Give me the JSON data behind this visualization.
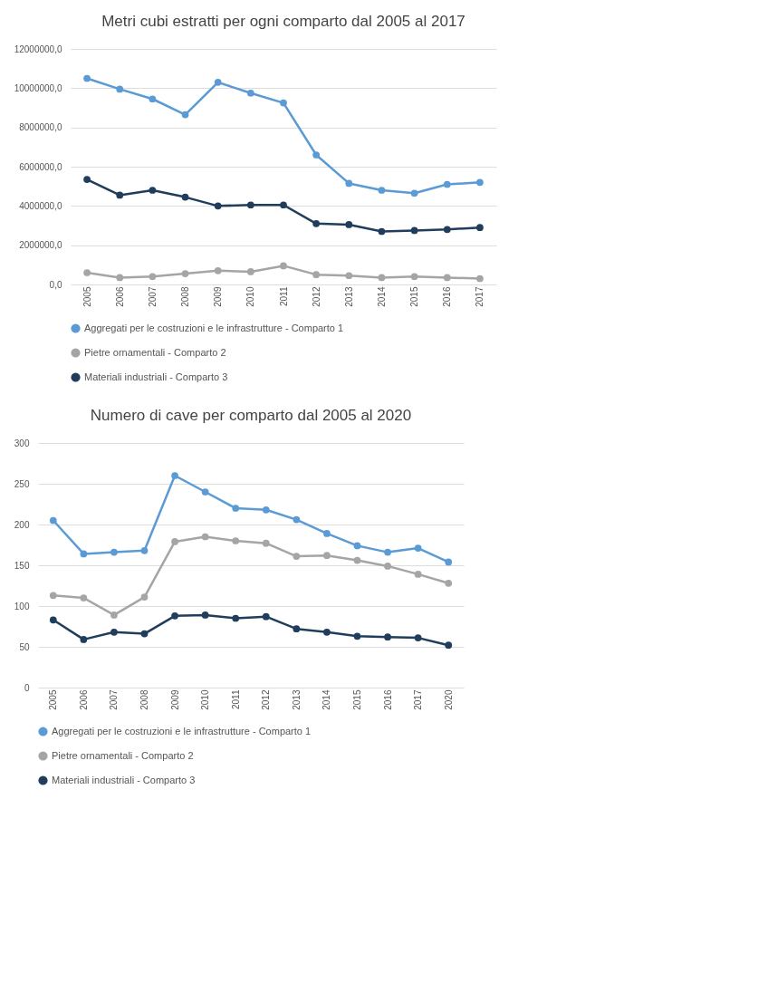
{
  "chart_data": [
    {
      "type": "line",
      "title": "Metri cubi estratti per ogni comparto dal 2005 al 2017",
      "categories": [
        "2005",
        "2006",
        "2007",
        "2008",
        "2009",
        "2010",
        "2011",
        "2012",
        "2013",
        "2014",
        "2015",
        "2016",
        "2017"
      ],
      "series": [
        {
          "name": "Aggregati per le costruzioni e le infrastrutture - Comparto 1",
          "color": "#5b9bd5",
          "values": [
            10500000,
            9950000,
            9450000,
            8650000,
            10300000,
            9750000,
            9250000,
            6600000,
            5150000,
            4800000,
            4650000,
            5100000,
            5200000
          ]
        },
        {
          "name": "Pietre ornamentali - Comparto 2",
          "color": "#a5a5a5",
          "values": [
            600000,
            350000,
            400000,
            550000,
            700000,
            650000,
            950000,
            500000,
            450000,
            350000,
            400000,
            350000,
            300000
          ]
        },
        {
          "name": "Materiali industriali - Comparto 3",
          "color": "#203d5c",
          "values": [
            5350000,
            4550000,
            4800000,
            4450000,
            4000000,
            4050000,
            4050000,
            3100000,
            3050000,
            2700000,
            2750000,
            2800000,
            2900000
          ]
        }
      ],
      "ylim": [
        0,
        12000000
      ],
      "yticks": [
        {
          "value": 0,
          "label": "0,0"
        },
        {
          "value": 2000000,
          "label": "2000000,0"
        },
        {
          "value": 4000000,
          "label": "4000000,0"
        },
        {
          "value": 6000000,
          "label": "6000000,0"
        },
        {
          "value": 8000000,
          "label": "8000000,0"
        },
        {
          "value": 10000000,
          "label": "10000000,0"
        },
        {
          "value": 12000000,
          "label": "12000000,0"
        }
      ],
      "grid": "y",
      "legend": "bottom",
      "marker": "circle",
      "line_style": "solid"
    },
    {
      "type": "line",
      "title": "Numero di cave per comparto dal 2005 al 2020",
      "categories": [
        "2005",
        "2006",
        "2007",
        "2008",
        "2009",
        "2010",
        "2011",
        "2012",
        "2013",
        "2014",
        "2015",
        "2016",
        "2017",
        "2020"
      ],
      "series": [
        {
          "name": "Aggregati per le costruzioni e le infrastrutture - Comparto 1",
          "color": "#5b9bd5",
          "values": [
            205,
            164,
            166,
            168,
            260,
            240,
            220,
            218,
            206,
            189,
            174,
            166,
            171,
            154
          ]
        },
        {
          "name": "Pietre ornamentali - Comparto 2",
          "color": "#a5a5a5",
          "values": [
            113,
            110,
            89,
            111,
            179,
            185,
            180,
            177,
            161,
            162,
            156,
            149,
            139,
            128
          ]
        },
        {
          "name": "Materiali industriali - Comparto 3",
          "color": "#203d5c",
          "values": [
            83,
            59,
            68,
            66,
            88,
            89,
            85,
            87,
            72,
            68,
            63,
            62,
            61,
            52
          ]
        }
      ],
      "ylim": [
        0,
        300
      ],
      "yticks": [
        0,
        50,
        100,
        150,
        200,
        250,
        300
      ],
      "grid": "y",
      "legend": "bottom",
      "marker": "circle",
      "line_style": "solid"
    }
  ]
}
